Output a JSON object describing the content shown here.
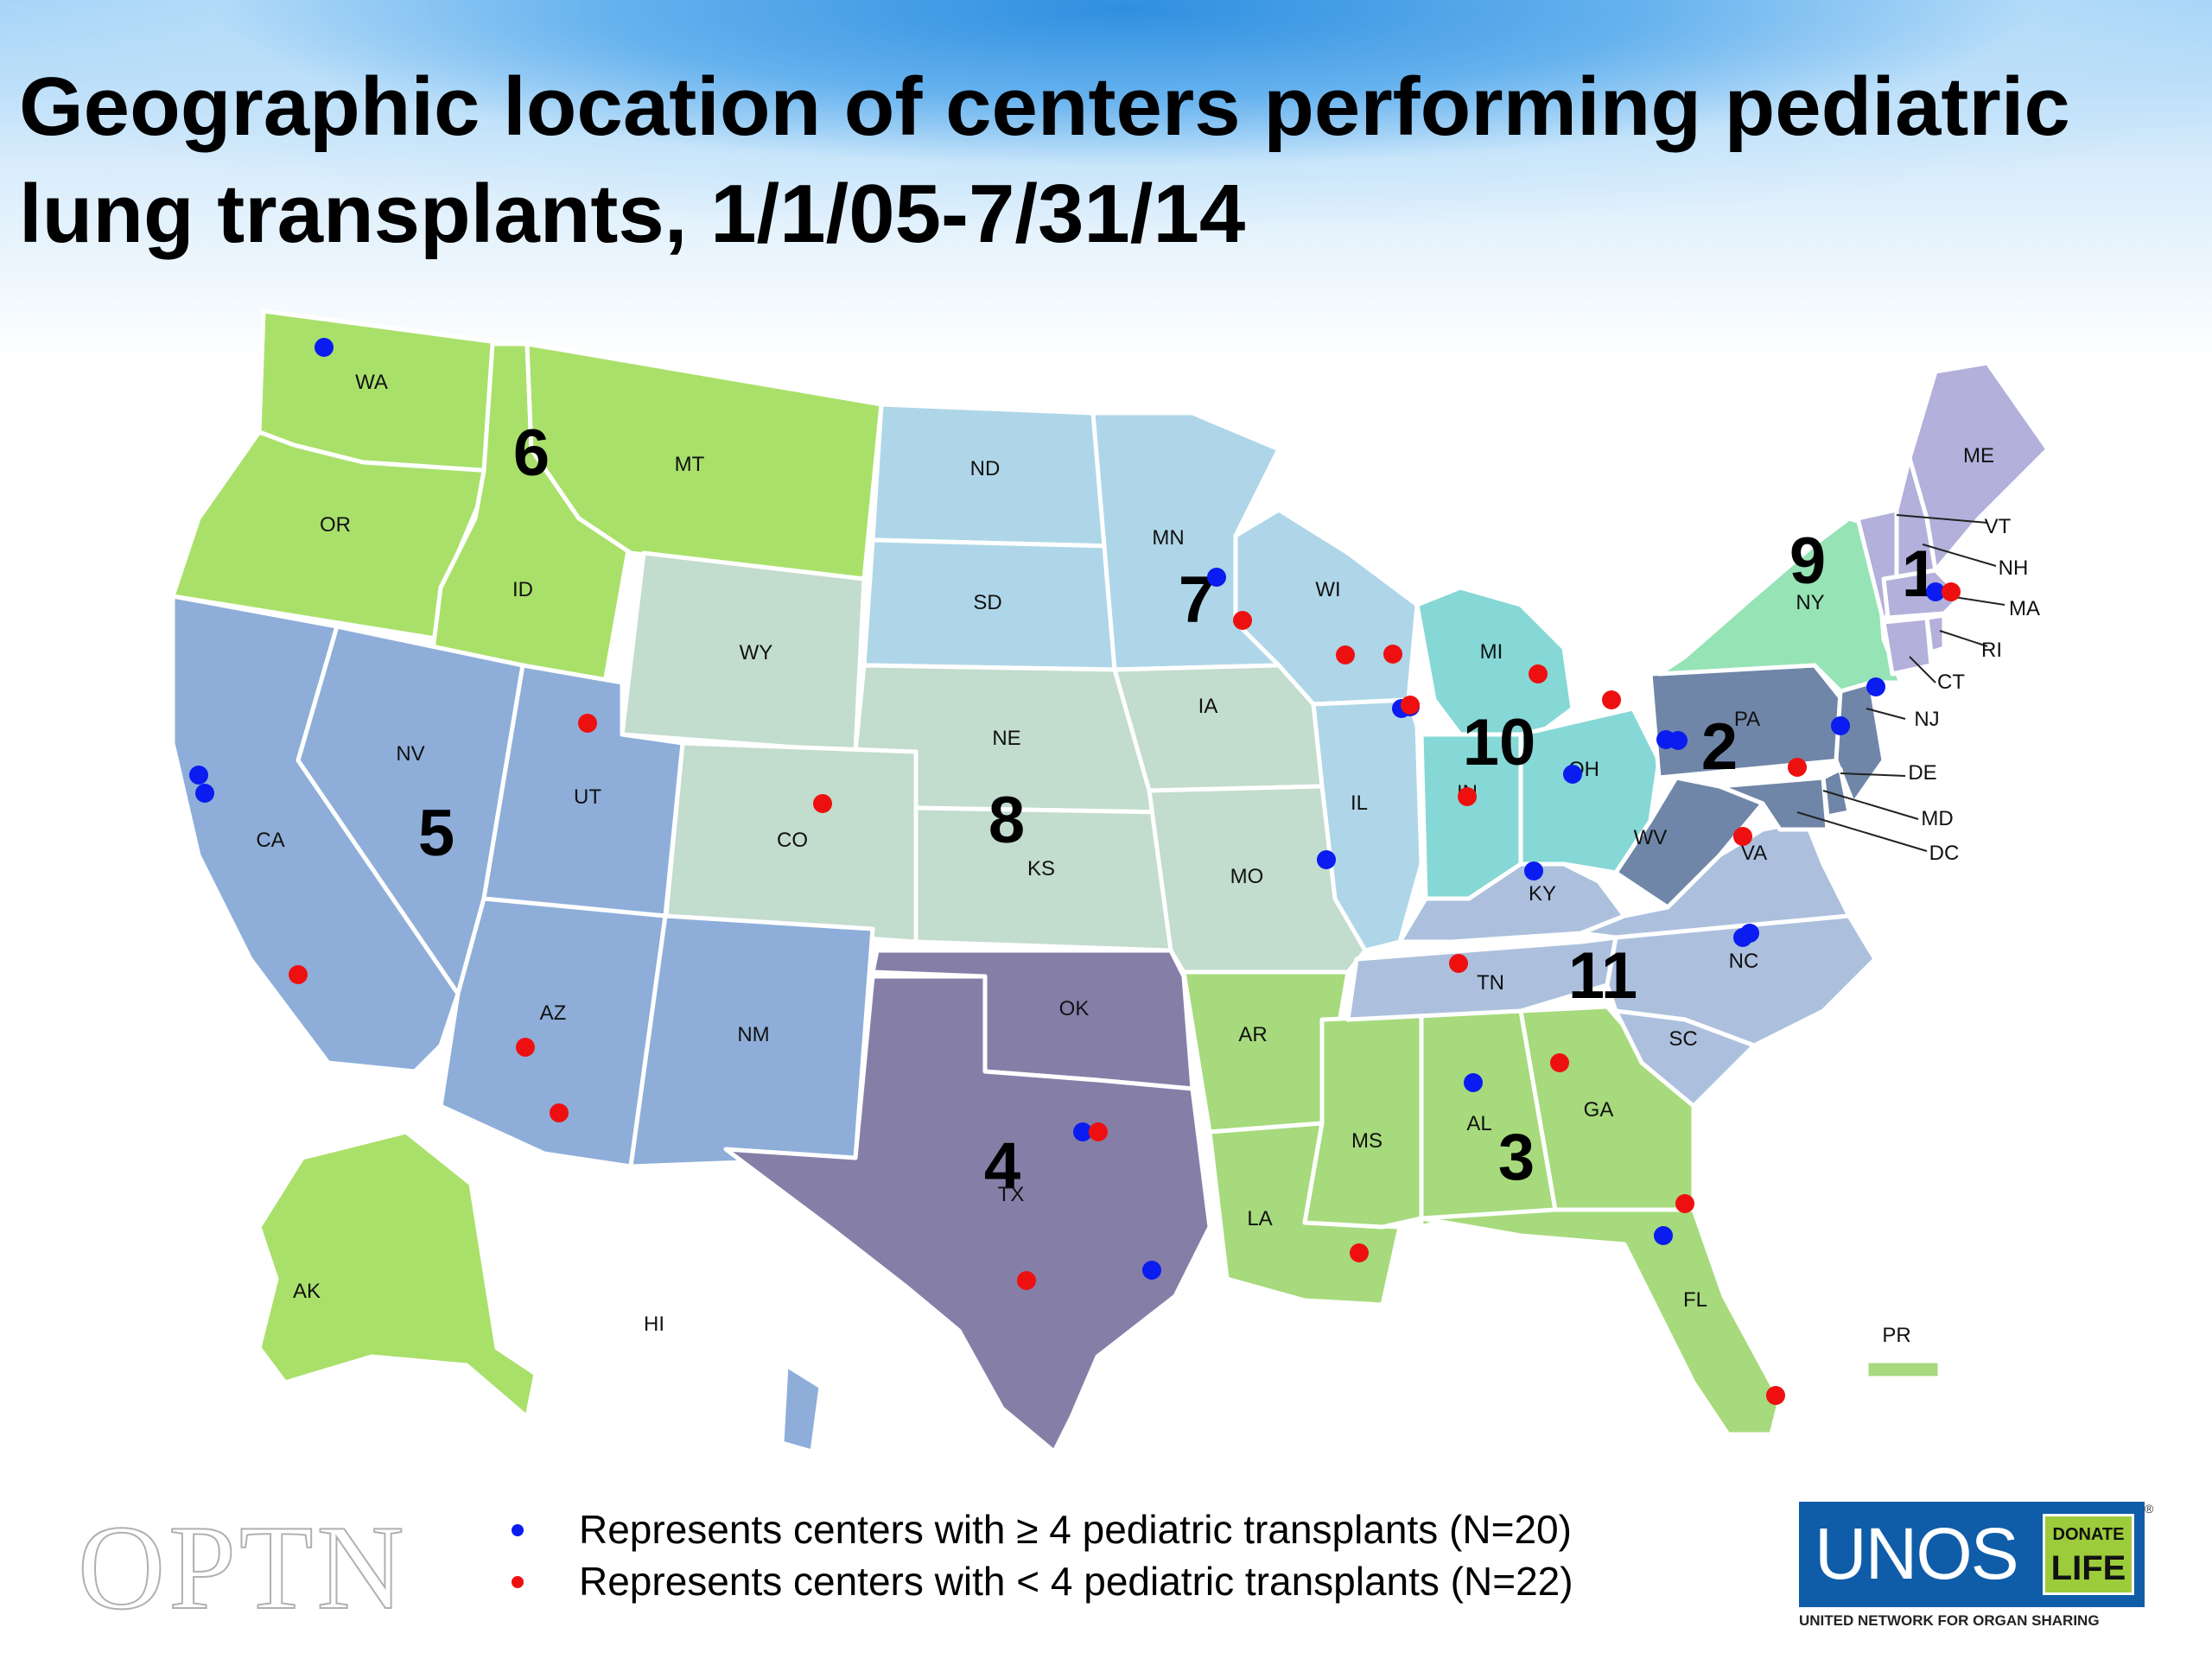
{
  "title": "Geographic location of centers performing pediatric lung transplants, 1/1/05-7/31/14",
  "map_kind": "United States map with OPTN regions and transplant centers",
  "colors": {
    "region_1": "#b3b0db",
    "region_2": "#6f86a8",
    "region_3": "#a6da7c",
    "region_4": "#857fa8",
    "region_5": "#8eaed9",
    "region_6": "#a9e06a",
    "region_7": "#aed6e8",
    "region_8": "#c2dccd",
    "region_9": "#96e3b5",
    "region_10": "#86d8d6",
    "region_11": "#acc0de",
    "center_ge4": "#0a1cf0",
    "center_lt4": "#ee1010"
  },
  "regions": [
    {
      "id": "region_1",
      "label": "1",
      "states": [
        "ME",
        "VT",
        "NH",
        "MA",
        "RI",
        "CT"
      ]
    },
    {
      "id": "region_2",
      "label": "2",
      "states": [
        "PA",
        "NJ",
        "DE",
        "MD",
        "DC",
        "WV"
      ]
    },
    {
      "id": "region_3",
      "label": "3",
      "states": [
        "AR",
        "LA",
        "MS",
        "AL",
        "GA",
        "FL",
        "PR"
      ]
    },
    {
      "id": "region_4",
      "label": "4",
      "states": [
        "OK",
        "TX"
      ]
    },
    {
      "id": "region_5",
      "label": "5",
      "states": [
        "CA",
        "NV",
        "UT",
        "AZ",
        "NM",
        "HI"
      ]
    },
    {
      "id": "region_6",
      "label": "6",
      "states": [
        "WA",
        "OR",
        "ID",
        "MT",
        "AK"
      ]
    },
    {
      "id": "region_7",
      "label": "7",
      "states": [
        "ND",
        "SD",
        "MN",
        "WI",
        "IL"
      ]
    },
    {
      "id": "region_8",
      "label": "8",
      "states": [
        "WY",
        "NE",
        "CO",
        "KS",
        "IA",
        "MO"
      ]
    },
    {
      "id": "region_9",
      "label": "9",
      "states": [
        "NY"
      ]
    },
    {
      "id": "region_10",
      "label": "10",
      "states": [
        "MI",
        "OH",
        "IN"
      ]
    },
    {
      "id": "region_11",
      "label": "11",
      "states": [
        "KY",
        "TN",
        "VA",
        "NC",
        "SC"
      ]
    }
  ],
  "state_labels": [
    "WA",
    "OR",
    "ID",
    "MT",
    "ND",
    "SD",
    "MN",
    "WI",
    "MI",
    "NY",
    "ME",
    "VT",
    "NH",
    "MA",
    "RI",
    "CT",
    "NJ",
    "DE",
    "MD",
    "DC",
    "PA",
    "OH",
    "IN",
    "IL",
    "IA",
    "NE",
    "WY",
    "NV",
    "UT",
    "CO",
    "CA",
    "KS",
    "MO",
    "KY",
    "WV",
    "VA",
    "NC",
    "TN",
    "SC",
    "AR",
    "OK",
    "AZ",
    "NM",
    "TX",
    "LA",
    "MS",
    "AL",
    "GA",
    "FL",
    "AK",
    "HI",
    "PR"
  ],
  "centers": {
    "ge4_count": 20,
    "lt4_count": 22
  },
  "legend": {
    "ge4": "Represents centers with ≥ 4 pediatric transplants (N=20)",
    "lt4": "Represents centers with < 4 pediatric transplants (N=22)"
  },
  "logos": {
    "optn": "OPTN",
    "unos_word": "UNOS",
    "donate_line1": "DONATE",
    "donate_line2": "LIFE",
    "reg_mark": "®",
    "unos_tagline": "UNITED NETWORK FOR ORGAN SHARING"
  }
}
